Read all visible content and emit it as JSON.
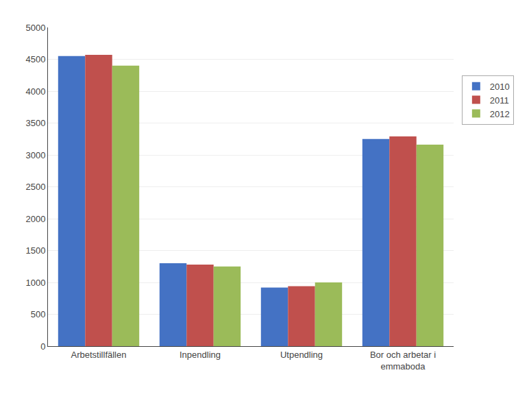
{
  "chart_data": {
    "type": "bar",
    "categories": [
      "Arbetstillfällen",
      "Inpendling",
      "Utpendling",
      "Bor och arbetar i\nemmaboda"
    ],
    "series": [
      {
        "name": "2010",
        "color": "#4472C4",
        "values": [
          4550,
          1300,
          920,
          3250
        ]
      },
      {
        "name": "2011",
        "color": "#C0504D",
        "values": [
          4570,
          1280,
          940,
          3290
        ]
      },
      {
        "name": "2012",
        "color": "#9BBB59",
        "values": [
          4400,
          1250,
          1000,
          3160
        ]
      }
    ],
    "ylim": [
      0,
      5000
    ],
    "yticks": [
      0,
      500,
      1000,
      1500,
      2000,
      2500,
      3000,
      3500,
      4000,
      4500,
      5000
    ],
    "grid": true,
    "legend": "right"
  }
}
